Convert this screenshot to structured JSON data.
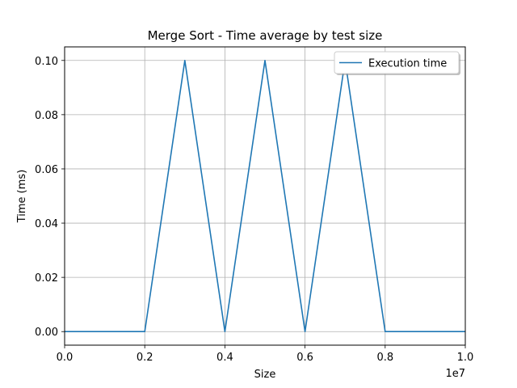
{
  "chart_data": {
    "type": "line",
    "title": "Merge Sort - Time average by test size",
    "xlabel": "Size",
    "ylabel": "Time (ms)",
    "x_offset_label": "1e7",
    "xlim": [
      0,
      10000000
    ],
    "ylim": [
      -0.005,
      0.105
    ],
    "x_ticks": [
      0,
      2000000,
      4000000,
      6000000,
      8000000,
      10000000
    ],
    "x_tick_labels": [
      "0.0",
      "0.2",
      "0.4",
      "0.6",
      "0.8",
      "1.0"
    ],
    "y_ticks": [
      0.0,
      0.02,
      0.04,
      0.06,
      0.08,
      0.1
    ],
    "y_tick_labels": [
      "0.00",
      "0.02",
      "0.04",
      "0.06",
      "0.08",
      "0.10"
    ],
    "grid": true,
    "legend_position": "top-right",
    "series": [
      {
        "name": "Execution time",
        "color": "#1f77b4",
        "x": [
          0,
          1000000,
          2000000,
          3000000,
          4000000,
          5000000,
          6000000,
          7000000,
          8000000,
          9000000,
          10000000
        ],
        "y": [
          0.0,
          0.0,
          0.0,
          0.1,
          0.0,
          0.1,
          0.0,
          0.1,
          0.0,
          0.0,
          0.0
        ]
      }
    ]
  }
}
